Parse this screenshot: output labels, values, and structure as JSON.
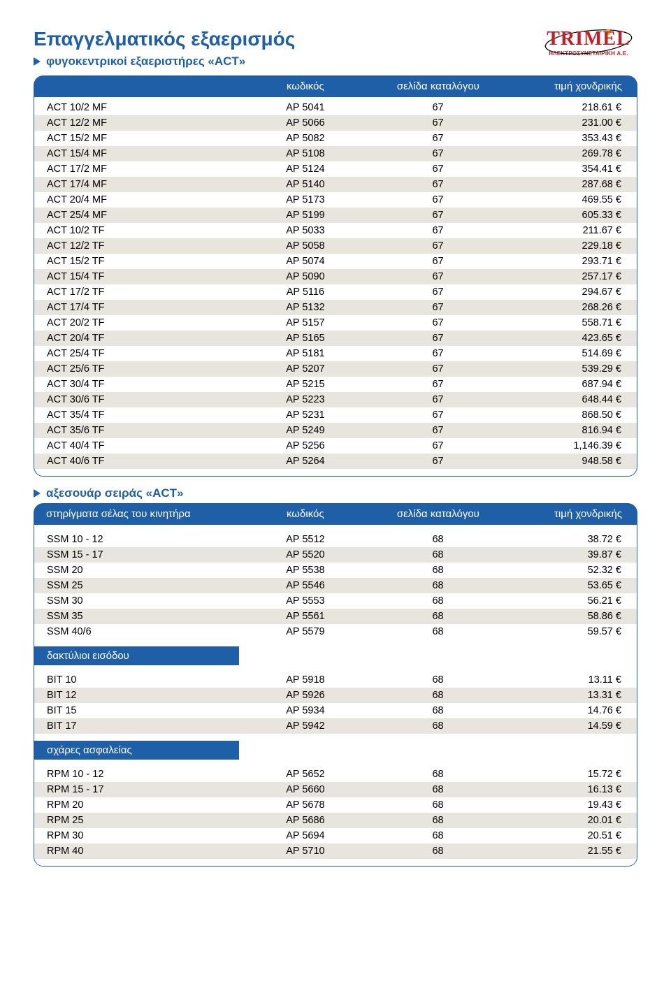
{
  "title": "Επαγγελματικός εξαερισμός",
  "subtitle_main": "φυγοκεντρικοί εξαεριστήρες «ACT»",
  "subtitle_acc": "αξεσουάρ σειράς «ACT»",
  "logo": {
    "brand": "TRIMEL",
    "tagline": "ΗΛΕΚΤΡΟΣΥΝΕΤΑΙΡΙΚΗ Α.Ε."
  },
  "columns": {
    "name_blank": "",
    "code": "κωδικός",
    "page": "σελίδα καταλόγου",
    "price": "τιμή χονδρικής",
    "name_motor": "στηρίγματα σέλας του κινητήρα",
    "name_rings": "δακτύλιοι εισόδου",
    "name_grilles": "σχάρες ασφαλείας"
  },
  "colors": {
    "brand_blue": "#1f5fa8",
    "brand_red": "#c41e25",
    "row_even": "#ffffff",
    "row_odd": "#e8e4de",
    "text": "#000000",
    "header_text": "#ffffff",
    "page_bg": "#ffffff"
  },
  "typography": {
    "body_font": "Arial",
    "body_size_pt": 11,
    "title_size_pt": 21,
    "subtitle_size_pt": 13,
    "logo_font": "Times New Roman",
    "logo_size_pt": 21
  },
  "main_table": {
    "rows": [
      [
        "ACT 10/2 MF",
        "AP 5041",
        "67",
        "218.61 €"
      ],
      [
        "ACT 12/2 MF",
        "AP 5066",
        "67",
        "231.00 €"
      ],
      [
        "ACT 15/2 MF",
        "AP 5082",
        "67",
        "353.43 €"
      ],
      [
        "ACT 15/4 MF",
        "AP 5108",
        "67",
        "269.78 €"
      ],
      [
        "ACT 17/2 MF",
        "AP 5124",
        "67",
        "354.41 €"
      ],
      [
        "ACT 17/4 MF",
        "AP 5140",
        "67",
        "287.68 €"
      ],
      [
        "ACT 20/4 MF",
        "AP 5173",
        "67",
        "469.55 €"
      ],
      [
        "ACT 25/4 MF",
        "AP 5199",
        "67",
        "605.33 €"
      ],
      [
        "ACT 10/2 TF",
        "AP 5033",
        "67",
        "211.67 €"
      ],
      [
        "ACT 12/2 TF",
        "AP 5058",
        "67",
        "229.18 €"
      ],
      [
        "ACT 15/2 TF",
        "AP 5074",
        "67",
        "293.71 €"
      ],
      [
        "ACT 15/4 TF",
        "AP 5090",
        "67",
        "257.17 €"
      ],
      [
        "ACT 17/2 TF",
        "AP 5116",
        "67",
        "294.67 €"
      ],
      [
        "ACT 17/4 TF",
        "AP 5132",
        "67",
        "268.26 €"
      ],
      [
        "ACT 20/2 TF",
        "AP 5157",
        "67",
        "558.71 €"
      ],
      [
        "ACT 20/4 TF",
        "AP 5165",
        "67",
        "423.65 €"
      ],
      [
        "ACT 25/4 TF",
        "AP 5181",
        "67",
        "514.69 €"
      ],
      [
        "ACT 25/6 TF",
        "AP 5207",
        "67",
        "539.29 €"
      ],
      [
        "ACT 30/4 TF",
        "AP 5215",
        "67",
        "687.94 €"
      ],
      [
        "ACT 30/6 TF",
        "AP 5223",
        "67",
        "648.44 €"
      ],
      [
        "ACT 35/4 TF",
        "AP 5231",
        "67",
        "868.50 €"
      ],
      [
        "ACT 35/6 TF",
        "AP 5249",
        "67",
        "816.94 €"
      ],
      [
        "ACT 40/4 TF",
        "AP 5256",
        "67",
        "1,146.39 €"
      ],
      [
        "ACT 40/6 TF",
        "AP 5264",
        "67",
        "948.58 €"
      ]
    ]
  },
  "acc_sections": [
    {
      "header_label_key": "name_motor",
      "show_full_header": true,
      "rows": [
        [
          "SSM 10 - 12",
          "AP 5512",
          "68",
          "38.72 €"
        ],
        [
          "SSM 15 - 17",
          "AP 5520",
          "68",
          "39.87 €"
        ],
        [
          "SSM 20",
          "AP 5538",
          "68",
          "52.32 €"
        ],
        [
          "SSM 25",
          "AP 5546",
          "68",
          "53.65 €"
        ],
        [
          "SSM 30",
          "AP 5553",
          "68",
          "56.21 €"
        ],
        [
          "SSM 35",
          "AP 5561",
          "68",
          "58.86 €"
        ],
        [
          "SSM 40/6",
          "AP 5579",
          "68",
          "59.57 €"
        ]
      ]
    },
    {
      "header_label_key": "name_rings",
      "show_full_header": false,
      "rows": [
        [
          "BIT 10",
          "AP 5918",
          "68",
          "13.11 €"
        ],
        [
          "BIT 12",
          "AP 5926",
          "68",
          "13.31 €"
        ],
        [
          "BIT 15",
          "AP 5934",
          "68",
          "14.76 €"
        ],
        [
          "BIT 17",
          "AP 5942",
          "68",
          "14.59 €"
        ]
      ]
    },
    {
      "header_label_key": "name_grilles",
      "show_full_header": false,
      "rows": [
        [
          "RPM 10 - 12",
          "AP 5652",
          "68",
          "15.72 €"
        ],
        [
          "RPM 15 - 17",
          "AP 5660",
          "68",
          "16.13 €"
        ],
        [
          "RPM 20",
          "AP 5678",
          "68",
          "19.43 €"
        ],
        [
          "RPM 25",
          "AP 5686",
          "68",
          "20.01 €"
        ],
        [
          "RPM 30",
          "AP 5694",
          "68",
          "20.51 €"
        ],
        [
          "RPM 40",
          "AP 5710",
          "68",
          "21.55 €"
        ]
      ]
    }
  ]
}
